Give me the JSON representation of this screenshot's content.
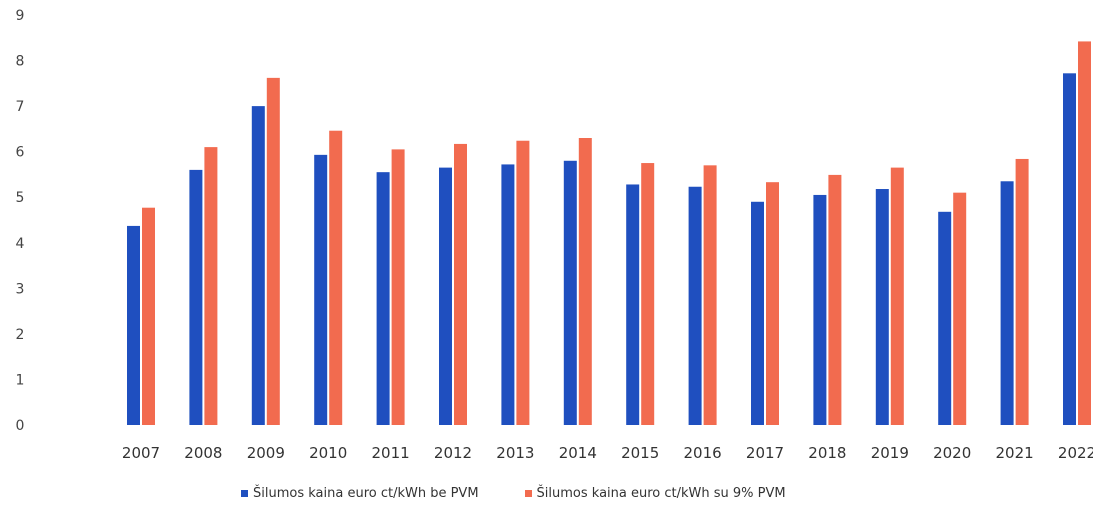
{
  "chart_data": {
    "type": "bar",
    "title": "",
    "xlabel": "",
    "ylabel": "",
    "ylim": [
      0,
      9
    ],
    "yticks": [
      0,
      1,
      2,
      3,
      4,
      5,
      6,
      7,
      8,
      9
    ],
    "grid": false,
    "legend_position": "bottom",
    "categories": [
      "2007",
      "2008",
      "2009",
      "2010",
      "2011",
      "2012",
      "2013",
      "2014",
      "2015",
      "2016",
      "2017",
      "2018",
      "2019",
      "2020",
      "2021",
      "2022"
    ],
    "series": [
      {
        "name": "Šilumos kaina euro ct/kWh be PVM",
        "color": "#1f4fbf",
        "values": [
          4.37,
          5.6,
          7.0,
          5.93,
          5.55,
          5.65,
          5.72,
          5.8,
          5.28,
          5.23,
          4.9,
          5.05,
          5.18,
          4.68,
          5.35,
          7.72
        ]
      },
      {
        "name": "Šilumos kaina euro ct/kWh su 9% PVM",
        "color": "#f26b4f",
        "values": [
          4.77,
          6.1,
          7.62,
          6.46,
          6.05,
          6.17,
          6.24,
          6.3,
          5.75,
          5.7,
          5.33,
          5.49,
          5.65,
          5.1,
          5.84,
          8.42
        ]
      }
    ]
  }
}
